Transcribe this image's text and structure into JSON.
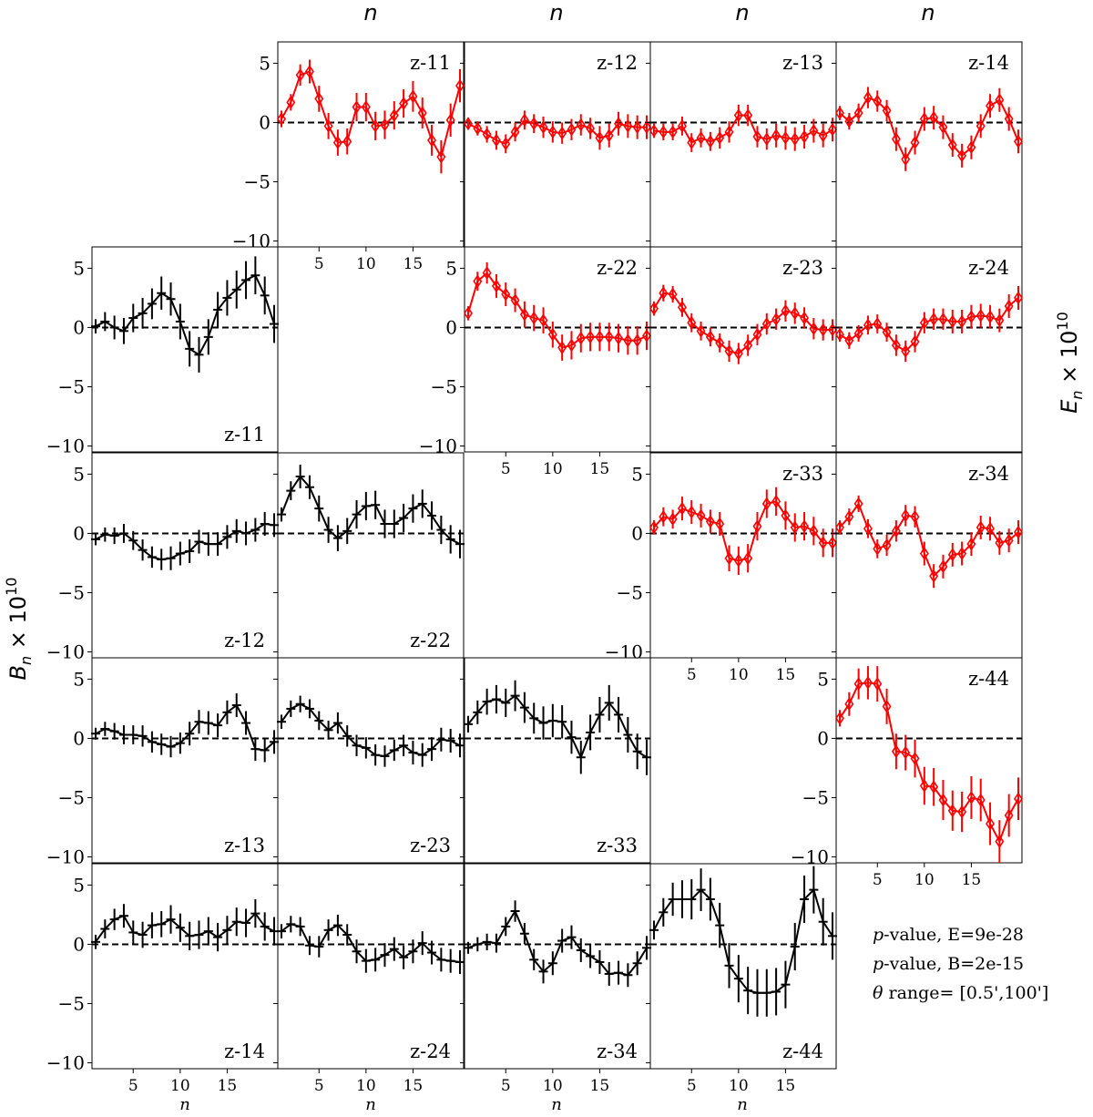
{
  "figure": {
    "top_xlabel": "n",
    "bottom_xlabel": "n",
    "left_ylabel": "B",
    "right_ylabel": "E",
    "ylabel_sub": "n",
    "ylabel_suffix": " × 10",
    "ylabel_exp": "10",
    "stats": {
      "pvalue_prefix": "p",
      "pvalue_E": "-value, E=9e-28",
      "pvalue_B": "-value, B=2e-15",
      "theta_symbol": "θ",
      "theta_range": " range= [0.5',100']"
    }
  },
  "chart_data": {
    "type": "scatter",
    "x": [
      1,
      2,
      3,
      4,
      5,
      6,
      7,
      8,
      9,
      10,
      11,
      12,
      13,
      14,
      15,
      16,
      17,
      18,
      19,
      20
    ],
    "xticks": [
      5,
      10,
      15
    ],
    "ylim": [
      -10.5,
      6.8
    ],
    "yticks": [
      5,
      0,
      -5,
      -10
    ],
    "ytick_labels": [
      "5",
      "0",
      "−5",
      "−10"
    ],
    "reference_line_y": 0,
    "E_color": "#ff0000",
    "B_color": "#000000",
    "E_panels": [
      {
        "label": "z-11",
        "row": 0,
        "col": 1,
        "values": [
          0.3,
          1.7,
          4.0,
          4.3,
          2.0,
          -0.3,
          -1.7,
          -1.6,
          1.3,
          1.3,
          -0.3,
          -0.2,
          0.6,
          1.6,
          2.2,
          0.8,
          -1.5,
          -2.9,
          0.2,
          3.1
        ],
        "err": [
          0.7,
          0.7,
          0.9,
          1.0,
          1.1,
          1.1,
          1.1,
          1.1,
          1.2,
          1.2,
          1.2,
          1.2,
          1.2,
          1.2,
          1.3,
          1.3,
          1.3,
          1.4,
          1.4,
          1.4
        ]
      },
      {
        "label": "z-12",
        "row": 0,
        "col": 2,
        "values": [
          -0.1,
          -0.5,
          -1.0,
          -1.5,
          -1.8,
          -0.8,
          0.2,
          -0.1,
          -0.4,
          -0.8,
          -0.9,
          -0.6,
          -0.2,
          -0.5,
          -1.3,
          -1.1,
          -0.1,
          -0.3,
          -0.4,
          -0.4
        ],
        "err": [
          0.5,
          0.6,
          0.7,
          0.8,
          0.8,
          0.8,
          0.8,
          0.8,
          0.9,
          0.9,
          0.9,
          0.9,
          0.9,
          0.9,
          1.0,
          1.0,
          1.0,
          1.0,
          1.0,
          1.0
        ]
      },
      {
        "label": "z-13",
        "row": 0,
        "col": 3,
        "values": [
          -0.7,
          -0.8,
          -0.8,
          -0.3,
          -1.7,
          -1.3,
          -1.6,
          -1.3,
          -0.8,
          0.6,
          0.6,
          -1.2,
          -1.4,
          -1.1,
          -1.3,
          -1.4,
          -1.2,
          -0.7,
          -1.1,
          -0.6
        ],
        "err": [
          0.6,
          0.7,
          0.7,
          0.8,
          0.8,
          0.8,
          0.8,
          0.9,
          0.9,
          0.9,
          0.9,
          0.9,
          0.9,
          1.0,
          1.0,
          1.0,
          1.0,
          1.0,
          1.0,
          1.0
        ]
      },
      {
        "label": "z-14",
        "row": 0,
        "col": 4,
        "values": [
          0.8,
          0.1,
          0.8,
          2.1,
          1.8,
          1.0,
          -1.4,
          -3.1,
          -1.7,
          0.3,
          0.4,
          -0.4,
          -1.9,
          -2.8,
          -2.1,
          -0.3,
          1.4,
          1.9,
          0.3,
          -1.6
        ],
        "err": [
          0.6,
          0.7,
          0.8,
          0.9,
          0.9,
          0.9,
          1.0,
          1.0,
          1.0,
          1.0,
          1.0,
          1.0,
          1.0,
          1.0,
          1.0,
          1.0,
          1.0,
          1.0,
          1.0,
          1.0
        ]
      },
      {
        "label": "z-22",
        "row": 1,
        "col": 2,
        "values": [
          1.2,
          3.9,
          4.6,
          3.5,
          2.8,
          2.3,
          1.1,
          0.8,
          0.6,
          -0.6,
          -1.7,
          -1.5,
          -0.9,
          -0.8,
          -0.8,
          -0.8,
          -0.9,
          -1.1,
          -1.1,
          -0.7
        ],
        "err": [
          0.6,
          0.8,
          0.9,
          1.0,
          1.0,
          1.0,
          1.1,
          1.1,
          1.1,
          1.1,
          1.1,
          1.2,
          1.2,
          1.2,
          1.2,
          1.2,
          1.2,
          1.2,
          1.2,
          1.2
        ]
      },
      {
        "label": "z-23",
        "row": 1,
        "col": 3,
        "values": [
          1.6,
          2.9,
          2.8,
          1.7,
          0.4,
          -0.3,
          -0.8,
          -1.3,
          -2.0,
          -2.2,
          -1.5,
          -0.6,
          0.3,
          0.7,
          1.4,
          1.2,
          0.8,
          -0.1,
          -0.2,
          -0.2
        ],
        "err": [
          0.6,
          0.7,
          0.7,
          0.8,
          0.8,
          0.8,
          0.8,
          0.8,
          0.9,
          0.9,
          0.9,
          0.9,
          0.9,
          0.9,
          0.9,
          0.9,
          0.9,
          0.9,
          0.9,
          0.9
        ]
      },
      {
        "label": "z-24",
        "row": 1,
        "col": 4,
        "values": [
          -0.6,
          -1.1,
          -0.5,
          0.2,
          0.3,
          -0.4,
          -1.5,
          -2.0,
          -1.2,
          0.4,
          0.7,
          0.7,
          0.5,
          0.5,
          0.9,
          1.0,
          0.9,
          0.6,
          1.8,
          2.5
        ],
        "err": [
          0.6,
          0.7,
          0.7,
          0.8,
          0.8,
          0.8,
          0.9,
          0.9,
          0.9,
          0.9,
          0.9,
          0.9,
          1.0,
          1.0,
          1.0,
          1.0,
          1.0,
          1.0,
          1.0,
          1.0
        ]
      },
      {
        "label": "z-33",
        "row": 2,
        "col": 3,
        "values": [
          0.5,
          1.4,
          1.2,
          2.1,
          1.8,
          1.5,
          1.0,
          0.8,
          -2.1,
          -2.3,
          -2.1,
          0.6,
          2.5,
          2.7,
          1.5,
          0.5,
          0.6,
          0.2,
          -0.8,
          -0.8
        ],
        "err": [
          0.6,
          0.8,
          0.8,
          1.0,
          1.0,
          1.0,
          1.0,
          1.0,
          1.1,
          1.2,
          1.2,
          1.2,
          1.2,
          1.2,
          1.2,
          1.2,
          1.2,
          1.2,
          1.2,
          1.2
        ]
      },
      {
        "label": "z-34",
        "row": 2,
        "col": 4,
        "values": [
          0.5,
          1.4,
          2.5,
          0.4,
          -1.3,
          -1.0,
          0.2,
          1.5,
          1.4,
          -1.7,
          -3.6,
          -2.8,
          -1.8,
          -1.7,
          -0.9,
          0.5,
          0.4,
          -0.8,
          -0.6,
          0.1
        ],
        "err": [
          0.6,
          0.7,
          0.7,
          0.8,
          0.8,
          0.9,
          0.9,
          0.9,
          0.9,
          1.0,
          1.0,
          1.0,
          1.0,
          1.0,
          1.0,
          1.0,
          1.0,
          1.0,
          1.0,
          1.0
        ]
      },
      {
        "label": "z-44",
        "row": 3,
        "col": 4,
        "values": [
          1.7,
          2.9,
          4.6,
          4.7,
          4.6,
          2.7,
          -1.1,
          -1.2,
          -1.7,
          -4.0,
          -4.1,
          -5.2,
          -6.1,
          -6.2,
          -5.0,
          -5.2,
          -7.2,
          -8.7,
          -6.5,
          -5.1
        ],
        "err": [
          0.7,
          1.0,
          1.3,
          1.4,
          1.5,
          1.5,
          1.5,
          1.5,
          1.6,
          1.6,
          1.6,
          1.7,
          1.7,
          1.7,
          1.8,
          1.8,
          1.8,
          1.8,
          1.8,
          1.8
        ]
      }
    ],
    "B_panels": [
      {
        "label": "z-11",
        "row": 1,
        "col": 0,
        "values": [
          0.1,
          0.5,
          0.0,
          -0.3,
          0.8,
          1.2,
          2.0,
          2.9,
          2.4,
          0.5,
          -1.8,
          -2.3,
          -0.8,
          1.5,
          2.5,
          3.2,
          4.0,
          4.4,
          2.7,
          0.3
        ],
        "err": [
          0.6,
          0.8,
          1.0,
          1.1,
          1.2,
          1.3,
          1.3,
          1.4,
          1.4,
          1.5,
          1.5,
          1.5,
          1.5,
          1.5,
          1.5,
          1.6,
          1.6,
          1.6,
          1.6,
          1.6
        ]
      },
      {
        "label": "z-12",
        "row": 2,
        "col": 0,
        "values": [
          -0.5,
          -0.1,
          -0.2,
          0.0,
          -0.6,
          -1.4,
          -2.0,
          -2.2,
          -2.1,
          -1.7,
          -1.5,
          -0.7,
          -0.9,
          -0.9,
          -0.3,
          0.2,
          0.0,
          0.3,
          0.8,
          0.7
        ],
        "err": [
          0.5,
          0.6,
          0.7,
          0.8,
          0.8,
          0.9,
          0.9,
          0.9,
          1.0,
          1.0,
          1.0,
          1.0,
          1.0,
          1.0,
          1.0,
          1.0,
          1.0,
          1.0,
          1.0,
          1.0
        ]
      },
      {
        "label": "z-22",
        "row": 2,
        "col": 1,
        "values": [
          1.6,
          3.6,
          4.8,
          3.9,
          2.1,
          0.3,
          -0.4,
          0.2,
          1.6,
          2.3,
          2.4,
          0.8,
          0.8,
          1.3,
          2.1,
          2.5,
          1.5,
          0.3,
          -0.5,
          -0.9
        ],
        "err": [
          0.6,
          0.8,
          1.0,
          1.0,
          1.1,
          1.1,
          1.1,
          1.1,
          1.2,
          1.2,
          1.2,
          1.2,
          1.2,
          1.2,
          1.2,
          1.2,
          1.2,
          1.2,
          1.2,
          1.2
        ]
      },
      {
        "label": "z-13",
        "row": 3,
        "col": 0,
        "values": [
          0.4,
          0.8,
          0.6,
          0.3,
          0.3,
          0.2,
          -0.3,
          -0.5,
          -0.7,
          -0.4,
          0.4,
          1.4,
          1.3,
          1.1,
          2.2,
          2.8,
          1.3,
          -0.9,
          -1.0,
          -0.3
        ],
        "err": [
          0.5,
          0.6,
          0.7,
          0.8,
          0.8,
          0.9,
          0.9,
          0.9,
          0.9,
          0.9,
          1.0,
          1.0,
          1.0,
          1.0,
          1.0,
          1.0,
          1.0,
          1.0,
          1.0,
          1.0
        ]
      },
      {
        "label": "z-23",
        "row": 3,
        "col": 1,
        "values": [
          1.4,
          2.5,
          2.9,
          2.5,
          1.5,
          0.7,
          1.3,
          0.2,
          -0.6,
          -0.8,
          -1.4,
          -1.5,
          -1.0,
          -0.6,
          -1.2,
          -1.4,
          -0.9,
          -0.1,
          -0.2,
          -0.6
        ],
        "err": [
          0.6,
          0.7,
          0.7,
          0.8,
          0.8,
          0.8,
          0.9,
          0.9,
          0.9,
          0.9,
          0.9,
          0.9,
          0.9,
          0.9,
          1.0,
          1.0,
          1.0,
          1.0,
          1.0,
          1.0
        ]
      },
      {
        "label": "z-33",
        "row": 3,
        "col": 2,
        "values": [
          1.2,
          2.2,
          3.1,
          3.3,
          3.0,
          3.6,
          2.6,
          1.7,
          1.3,
          1.5,
          1.4,
          0.1,
          -1.6,
          0.5,
          2.0,
          3.0,
          2.0,
          0.3,
          -1.1,
          -1.6
        ],
        "err": [
          0.7,
          1.0,
          1.1,
          1.2,
          1.2,
          1.3,
          1.3,
          1.3,
          1.4,
          1.4,
          1.4,
          1.4,
          1.4,
          1.5,
          1.5,
          1.5,
          1.5,
          1.5,
          1.5,
          1.5
        ]
      },
      {
        "label": "z-14",
        "row": 4,
        "col": 0,
        "values": [
          0.2,
          1.3,
          2.1,
          2.4,
          1.0,
          0.8,
          1.6,
          1.7,
          2.1,
          1.4,
          0.7,
          0.8,
          1.1,
          0.6,
          1.2,
          1.9,
          1.8,
          2.6,
          1.5,
          1.1
        ],
        "err": [
          0.6,
          0.8,
          0.9,
          1.0,
          1.0,
          1.1,
          1.1,
          1.1,
          1.2,
          1.2,
          1.2,
          1.2,
          1.2,
          1.2,
          1.2,
          1.2,
          1.2,
          1.2,
          1.2,
          1.2
        ]
      },
      {
        "label": "z-24",
        "row": 4,
        "col": 1,
        "values": [
          1.1,
          1.7,
          1.5,
          -0.1,
          -0.2,
          1.2,
          1.6,
          0.8,
          -0.6,
          -1.4,
          -1.3,
          -0.9,
          -0.4,
          -1.1,
          -0.6,
          0.1,
          -0.7,
          -1.3,
          -1.4,
          -1.5
        ],
        "err": [
          0.6,
          0.7,
          0.8,
          0.8,
          0.9,
          0.9,
          0.9,
          0.9,
          1.0,
          1.0,
          1.0,
          1.0,
          1.0,
          1.0,
          1.0,
          1.0,
          1.0,
          1.0,
          1.0,
          1.0
        ]
      },
      {
        "label": "z-34",
        "row": 4,
        "col": 2,
        "values": [
          -0.3,
          0.0,
          0.2,
          0.1,
          1.5,
          2.8,
          0.9,
          -1.3,
          -2.3,
          -1.6,
          0.3,
          0.6,
          -0.5,
          -1.0,
          -1.5,
          -2.5,
          -2.4,
          -2.6,
          -1.6,
          -0.3
        ],
        "err": [
          0.5,
          0.6,
          0.7,
          0.8,
          0.8,
          0.9,
          0.9,
          0.9,
          1.0,
          1.0,
          1.0,
          1.0,
          1.0,
          1.0,
          1.0,
          1.0,
          1.0,
          1.0,
          1.0,
          1.0
        ]
      },
      {
        "label": "z-44",
        "row": 4,
        "col": 3,
        "values": [
          1.2,
          2.7,
          3.8,
          3.8,
          3.8,
          4.6,
          3.8,
          1.6,
          -1.8,
          -2.9,
          -3.9,
          -4.1,
          -4.1,
          -4.0,
          -3.4,
          -0.2,
          3.8,
          4.6,
          1.9,
          0.7
        ],
        "err": [
          0.8,
          1.2,
          1.4,
          1.6,
          1.7,
          1.8,
          1.8,
          1.9,
          1.9,
          2.0,
          2.0,
          2.0,
          2.0,
          2.0,
          2.0,
          2.0,
          2.0,
          2.0,
          2.0,
          2.0
        ]
      }
    ]
  }
}
